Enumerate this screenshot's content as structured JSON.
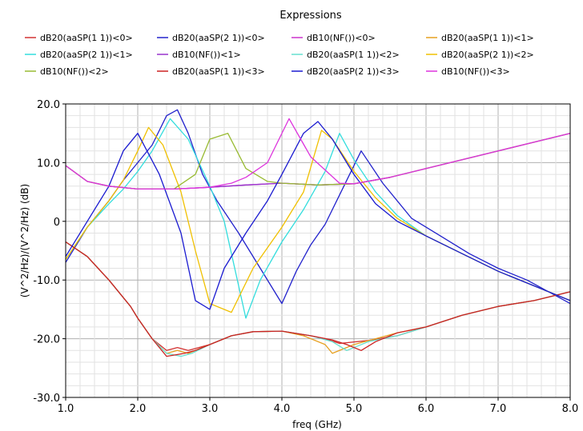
{
  "chart_data": {
    "type": "line",
    "title": "Expressions",
    "xlabel": "freq (GHz)",
    "ylabel": "(V^2/Hz)/(V^2/Hz) (dB)",
    "xlim": [
      1.0,
      8.0
    ],
    "ylim": [
      -30.0,
      20.0
    ],
    "xticks": [
      "1.0",
      "2.0",
      "3.0",
      "4.0",
      "5.0",
      "6.0",
      "7.0",
      "8.0"
    ],
    "yticks": [
      "-30.0",
      "-20.0",
      "-10.0",
      "0",
      "10.0",
      "20.0"
    ],
    "grid": true,
    "legend_position": "top",
    "series": [
      {
        "name": "dB20(aaSP(1 1))<0>",
        "color": "#d23232",
        "x": [
          1.0,
          1.3,
          1.6,
          1.9,
          2.0,
          2.2,
          2.4,
          2.55,
          2.7,
          3.0,
          3.3,
          3.6,
          4.0,
          4.4,
          4.6,
          4.8,
          5.2,
          5.6,
          6.0,
          6.5,
          7.0,
          7.5,
          8.0
        ],
        "y": [
          -3.5,
          -6.0,
          -10.0,
          -14.5,
          -16.5,
          -20.0,
          -22.0,
          -21.5,
          -22.0,
          -21.0,
          -19.5,
          -18.8,
          -18.7,
          -19.5,
          -20.0,
          -20.8,
          -20.3,
          -19.5,
          -18.0,
          -16.0,
          -14.5,
          -13.5,
          -12.0
        ]
      },
      {
        "name": "dB20(aaSP(2 1))<0>",
        "color": "#2222cc",
        "x": [
          1.0,
          1.3,
          1.6,
          1.8,
          2.0,
          2.2,
          2.4,
          2.55,
          2.7,
          2.9,
          3.1,
          3.4,
          3.7,
          4.0,
          4.2,
          4.4,
          4.6,
          4.8,
          5.1,
          5.4,
          5.8,
          6.2,
          6.6,
          7.0,
          7.4,
          8.0
        ],
        "y": [
          -7.0,
          -1.0,
          3.5,
          7.0,
          10.0,
          13.0,
          18.0,
          19.0,
          15.0,
          8.0,
          3.5,
          -2.0,
          -8.0,
          -14.0,
          -8.5,
          -4.0,
          -0.5,
          4.5,
          12.0,
          6.5,
          0.5,
          -2.5,
          -5.5,
          -8.0,
          -10.0,
          -14.0
        ]
      },
      {
        "name": "dB10(NF())<0>",
        "color": "#cc33cc",
        "x": [
          1.0,
          1.3,
          1.6,
          2.0,
          2.5,
          3.0,
          3.5,
          4.0,
          4.5,
          5.0,
          5.5,
          6.0,
          6.5,
          7.0,
          7.5,
          8.0
        ],
        "y": [
          9.5,
          6.8,
          6.0,
          5.5,
          5.5,
          5.8,
          6.2,
          6.5,
          6.2,
          6.4,
          7.5,
          9.0,
          10.5,
          12.0,
          13.5,
          15.0
        ]
      },
      {
        "name": "dB20(aaSP(1 1))<1>",
        "color": "#e6a020",
        "x": [
          1.0,
          1.3,
          1.6,
          1.9,
          2.0,
          2.2,
          2.4,
          2.55,
          2.7,
          3.0,
          3.3,
          3.6,
          4.0,
          4.3,
          4.6,
          4.7,
          5.0,
          5.3,
          5.6,
          6.0,
          6.5,
          7.0,
          7.5,
          8.0
        ],
        "y": [
          -3.5,
          -6.0,
          -10.0,
          -14.5,
          -16.5,
          -20.0,
          -22.5,
          -22.0,
          -22.5,
          -21.0,
          -19.5,
          -18.8,
          -18.7,
          -19.5,
          -21.0,
          -22.5,
          -21.0,
          -20.0,
          -19.0,
          -18.0,
          -16.0,
          -14.5,
          -13.5,
          -12.0
        ]
      },
      {
        "name": "dB20(aaSP(2 1))<1>",
        "color": "#33dddd",
        "x": [
          1.0,
          1.3,
          1.6,
          1.8,
          2.0,
          2.2,
          2.45,
          2.7,
          3.0,
          3.2,
          3.5,
          3.7,
          4.0,
          4.3,
          4.6,
          4.8,
          5.0,
          5.3,
          5.6,
          6.0,
          6.5,
          7.0,
          7.5,
          8.0
        ],
        "y": [
          -6.5,
          -1.0,
          3.0,
          5.5,
          8.5,
          12.0,
          17.5,
          14.0,
          6.0,
          0.0,
          -16.5,
          -10.0,
          -3.5,
          2.0,
          8.5,
          15.0,
          10.5,
          5.0,
          1.0,
          -2.5,
          -5.5,
          -8.5,
          -11.0,
          -13.5
        ]
      },
      {
        "name": "dB10(NF())<1>",
        "color": "#9933cc",
        "x": [
          1.0,
          1.3,
          1.6,
          2.0,
          2.5,
          3.0,
          3.5,
          4.0,
          4.5,
          5.0,
          5.5,
          6.0,
          6.5,
          7.0,
          7.5,
          8.0
        ],
        "y": [
          9.5,
          6.8,
          6.0,
          5.5,
          5.5,
          5.8,
          6.2,
          6.5,
          6.2,
          6.4,
          7.5,
          9.0,
          10.5,
          12.0,
          13.5,
          15.0
        ]
      },
      {
        "name": "dB20(aaSP(1 1))<2>",
        "color": "#66e0d0",
        "x": [
          1.0,
          1.3,
          1.6,
          1.9,
          2.0,
          2.2,
          2.4,
          2.6,
          2.75,
          3.0,
          3.3,
          3.6,
          4.0,
          4.4,
          4.7,
          4.9,
          5.2,
          5.6,
          6.0,
          6.5,
          7.0,
          7.5,
          8.0
        ],
        "y": [
          -3.5,
          -6.0,
          -10.0,
          -14.5,
          -16.5,
          -20.0,
          -22.5,
          -23.0,
          -22.5,
          -21.0,
          -19.5,
          -18.8,
          -18.7,
          -19.5,
          -20.5,
          -22.0,
          -20.5,
          -19.5,
          -18.0,
          -16.0,
          -14.5,
          -13.5,
          -12.0
        ]
      },
      {
        "name": "dB20(aaSP(2 1))<2>",
        "color": "#f0c000",
        "x": [
          1.0,
          1.3,
          1.6,
          1.8,
          2.0,
          2.15,
          2.35,
          2.6,
          2.8,
          3.0,
          3.3,
          3.6,
          4.0,
          4.3,
          4.55,
          4.7,
          5.0,
          5.3,
          5.6,
          6.0,
          6.5,
          7.0,
          7.5,
          8.0
        ],
        "y": [
          -6.5,
          -1.0,
          3.5,
          7.0,
          12.0,
          16.0,
          13.0,
          5.0,
          -5.0,
          -14.0,
          -15.5,
          -8.0,
          -1.0,
          5.0,
          15.5,
          14.0,
          8.5,
          4.0,
          0.5,
          -2.5,
          -5.5,
          -8.5,
          -11.0,
          -13.5
        ]
      },
      {
        "name": "dB10(NF())<2>",
        "color": "#99bb33",
        "x": [
          1.0,
          1.3,
          1.6,
          2.0,
          2.5,
          2.8,
          3.0,
          3.25,
          3.5,
          3.8,
          4.0,
          4.5,
          5.0,
          5.5,
          6.0,
          6.5,
          7.0,
          7.5,
          8.0
        ],
        "y": [
          9.5,
          6.8,
          6.0,
          5.5,
          5.5,
          8.0,
          14.0,
          15.0,
          9.0,
          6.8,
          6.5,
          6.2,
          6.4,
          7.5,
          9.0,
          10.5,
          12.0,
          13.5,
          15.0
        ]
      },
      {
        "name": "dB20(aaSP(1 1))<3>",
        "color": "#cc2222",
        "x": [
          1.0,
          1.3,
          1.6,
          1.9,
          2.0,
          2.2,
          2.4,
          2.65,
          2.8,
          3.0,
          3.3,
          3.6,
          4.0,
          4.4,
          4.7,
          4.9,
          5.1,
          5.3,
          5.6,
          6.0,
          6.5,
          7.0,
          7.5,
          8.0
        ],
        "y": [
          -3.5,
          -6.0,
          -10.0,
          -14.5,
          -16.5,
          -20.0,
          -23.0,
          -22.5,
          -22.0,
          -21.0,
          -19.5,
          -18.8,
          -18.7,
          -19.5,
          -20.2,
          -21.0,
          -22.0,
          -20.5,
          -19.0,
          -18.0,
          -16.0,
          -14.5,
          -13.5,
          -12.0
        ]
      },
      {
        "name": "dB20(aaSP(2 1))<3>",
        "color": "#1a1ad0",
        "x": [
          1.0,
          1.3,
          1.6,
          1.8,
          2.0,
          2.3,
          2.6,
          2.8,
          3.0,
          3.2,
          3.5,
          3.8,
          4.0,
          4.3,
          4.5,
          4.7,
          5.0,
          5.3,
          5.6,
          6.0,
          6.5,
          7.0,
          7.5,
          8.0
        ],
        "y": [
          -6.0,
          0.0,
          6.0,
          12.0,
          15.0,
          8.0,
          -2.0,
          -13.5,
          -15.0,
          -8.0,
          -2.0,
          3.5,
          8.0,
          15.0,
          17.0,
          14.0,
          8.0,
          3.0,
          0.0,
          -2.5,
          -5.5,
          -8.5,
          -11.0,
          -13.5
        ]
      },
      {
        "name": "dB10(NF())<3>",
        "color": "#dd33dd",
        "x": [
          1.0,
          1.3,
          1.6,
          2.0,
          2.5,
          3.0,
          3.3,
          3.5,
          3.8,
          4.1,
          4.4,
          4.8,
          5.0,
          5.5,
          6.0,
          6.5,
          7.0,
          7.5,
          8.0
        ],
        "y": [
          9.5,
          6.8,
          6.0,
          5.5,
          5.5,
          5.8,
          6.5,
          7.5,
          10.0,
          17.5,
          11.0,
          6.5,
          6.4,
          7.5,
          9.0,
          10.5,
          12.0,
          13.5,
          15.0
        ]
      }
    ]
  }
}
